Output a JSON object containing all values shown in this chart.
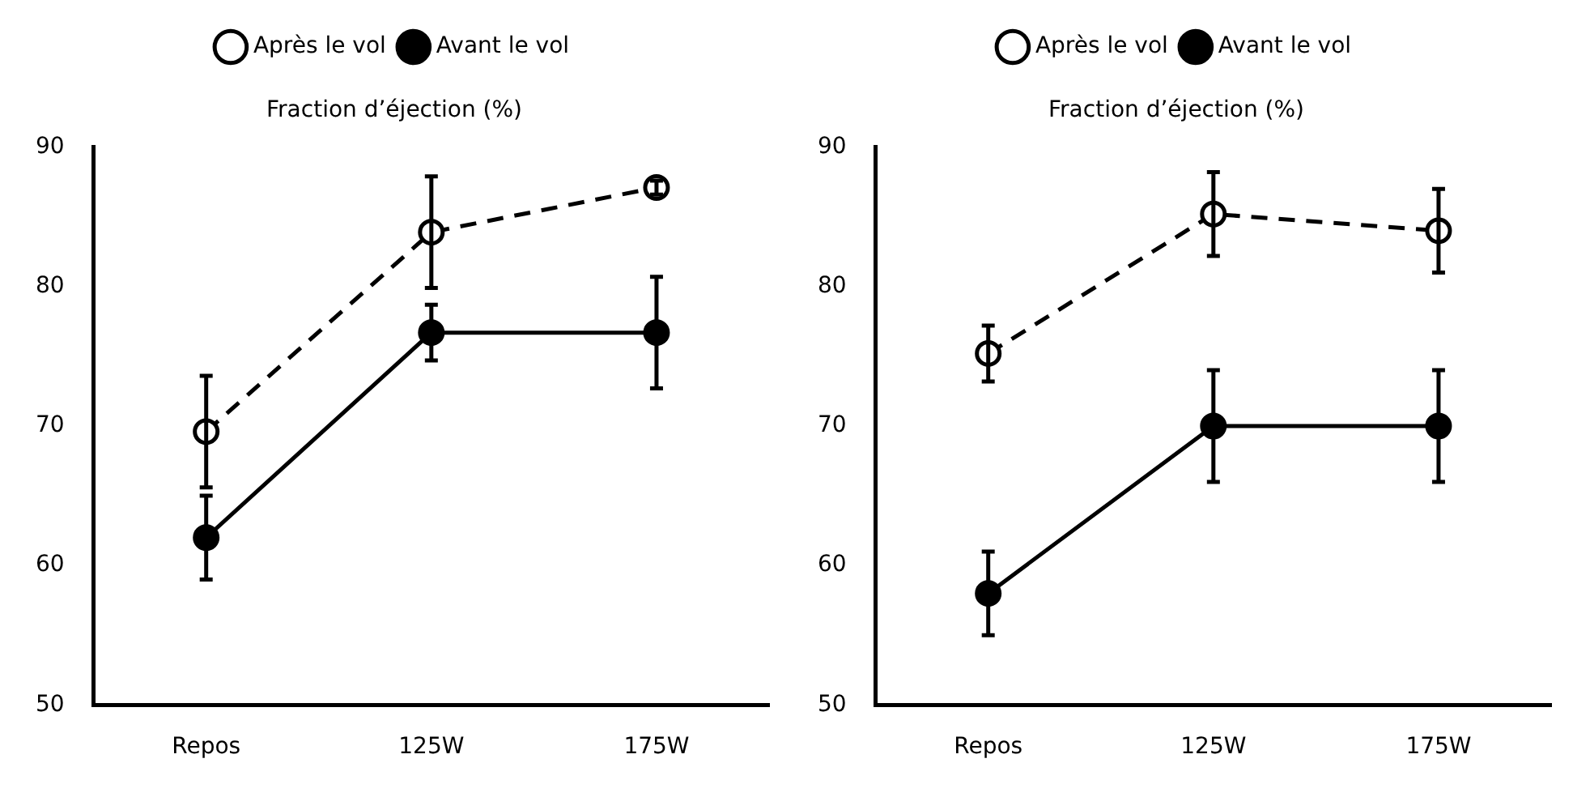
{
  "chart_data": [
    {
      "type": "line",
      "title": "Fraction d’éjection (%)",
      "categories": [
        "Repos",
        "125W",
        "175W"
      ],
      "series": [
        {
          "name": "Avant le vol",
          "color": "#000000",
          "values": [
            62,
            76.7,
            76.7
          ],
          "errors": [
            3,
            2,
            4
          ],
          "marker": "circle",
          "line_style": "solid"
        },
        {
          "name": "Après le vol",
          "color": "#000000",
          "values": [
            69.6,
            83.9,
            87.1
          ],
          "errors": [
            4,
            4,
            0.5
          ],
          "marker": "circle",
          "line_style": "dashed"
        }
      ],
      "ylim": [
        50,
        90
      ],
      "yticks": [
        50,
        60,
        70,
        80,
        90
      ],
      "grid": false,
      "legend": "top"
    },
    {
      "type": "line",
      "title": "Fraction d’éjection (%)",
      "categories": [
        "Repos",
        "125W",
        "175W"
      ],
      "series": [
        {
          "name": "Avant le vol",
          "color": "#000000",
          "values": [
            58,
            70,
            70
          ],
          "errors": [
            3,
            4,
            4
          ],
          "marker": "circle",
          "line_style": "solid"
        },
        {
          "name": "Après le vol",
          "color": "#000000",
          "values": [
            75.2,
            85.2,
            84
          ],
          "errors": [
            2,
            3,
            3
          ],
          "marker": "circle",
          "line_style": "dashed"
        }
      ],
      "ylim": [
        50,
        90
      ],
      "yticks": [
        50,
        60,
        70,
        80,
        90
      ],
      "grid": false,
      "legend": "top"
    }
  ]
}
